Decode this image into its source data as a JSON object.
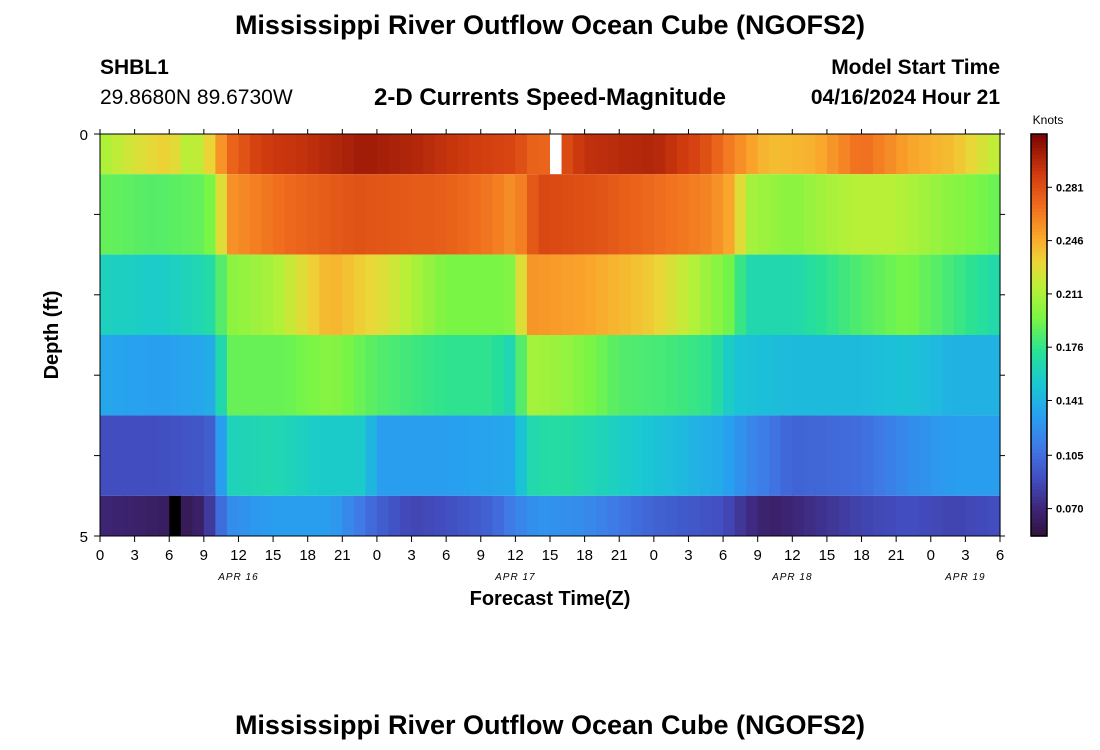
{
  "header": {
    "title": "Mississippi River Outflow Ocean Cube (NGOFS2)",
    "station_id": "SHBL1",
    "coordinates": "29.8680N  89.6730W",
    "model_start_label": "Model Start Time",
    "model_start_value": "04/16/2024 Hour 21"
  },
  "footer": {
    "next_title": "Mississippi River Outflow Ocean Cube (NGOFS2)"
  },
  "chart_data": {
    "type": "heatmap",
    "title": "2-D Currents Speed-Magnitude",
    "xlabel": "Forecast Time(Z)",
    "ylabel": "Depth (ft)",
    "x_hours_range": [
      0,
      78
    ],
    "x_tick_labels": [
      "0",
      "3",
      "6",
      "9",
      "12",
      "15",
      "18",
      "21",
      "0",
      "3",
      "6",
      "9",
      "12",
      "15",
      "18",
      "21",
      "0",
      "3",
      "6",
      "9",
      "12",
      "15",
      "18",
      "21",
      "0",
      "3",
      "6"
    ],
    "date_labels": [
      {
        "label": "APR 16",
        "hour": 12
      },
      {
        "label": "APR 17",
        "hour": 36
      },
      {
        "label": "APR 18",
        "hour": 60
      },
      {
        "label": "APR 19",
        "hour": 75
      }
    ],
    "y_tick_labels": [
      "0",
      "5"
    ],
    "depth_range": [
      0,
      5
    ],
    "colorbar": {
      "label": "Knots",
      "min": 0.052,
      "max": 0.316,
      "tick_labels": [
        "0.281",
        "0.246",
        "0.211",
        "0.176",
        "0.141",
        "0.105",
        "0.070"
      ],
      "tick_values": [
        0.281,
        0.246,
        0.211,
        0.176,
        0.141,
        0.105,
        0.07
      ]
    },
    "layers": [
      {
        "band": [
          0,
          0.5
        ],
        "keypoints": [
          [
            0,
            0.21
          ],
          [
            3,
            0.225
          ],
          [
            6,
            0.235
          ],
          [
            8,
            0.21
          ],
          [
            10,
            0.24
          ],
          [
            11,
            0.27
          ],
          [
            14,
            0.29
          ],
          [
            18,
            0.295
          ],
          [
            23,
            0.305
          ],
          [
            27,
            0.3
          ],
          [
            32,
            0.29
          ],
          [
            36,
            0.285
          ],
          [
            38,
            0.27
          ],
          [
            40,
            0.28
          ],
          [
            42,
            0.295
          ],
          [
            48,
            0.3
          ],
          [
            52,
            0.285
          ],
          [
            55,
            0.26
          ],
          [
            58,
            0.24
          ],
          [
            62,
            0.245
          ],
          [
            66,
            0.27
          ],
          [
            70,
            0.25
          ],
          [
            74,
            0.24
          ],
          [
            78,
            0.215
          ]
        ],
        "missing": [
          [
            39,
            40
          ]
        ]
      },
      {
        "band": [
          0.5,
          1.5
        ],
        "keypoints": [
          [
            0,
            0.19
          ],
          [
            5,
            0.185
          ],
          [
            9,
            0.19
          ],
          [
            10,
            0.2
          ],
          [
            11,
            0.255
          ],
          [
            16,
            0.27
          ],
          [
            22,
            0.28
          ],
          [
            30,
            0.275
          ],
          [
            34,
            0.265
          ],
          [
            36,
            0.255
          ],
          [
            38,
            0.285
          ],
          [
            43,
            0.28
          ],
          [
            48,
            0.27
          ],
          [
            53,
            0.26
          ],
          [
            55,
            0.245
          ],
          [
            56,
            0.21
          ],
          [
            60,
            0.2
          ],
          [
            65,
            0.215
          ],
          [
            69,
            0.215
          ],
          [
            74,
            0.2
          ],
          [
            78,
            0.19
          ]
        ]
      },
      {
        "band": [
          1.5,
          2.5
        ],
        "keypoints": [
          [
            0,
            0.16
          ],
          [
            5,
            0.155
          ],
          [
            9,
            0.165
          ],
          [
            10,
            0.17
          ],
          [
            11,
            0.2
          ],
          [
            15,
            0.21
          ],
          [
            20,
            0.245
          ],
          [
            25,
            0.225
          ],
          [
            30,
            0.195
          ],
          [
            35,
            0.195
          ],
          [
            36,
            0.2
          ],
          [
            37,
            0.255
          ],
          [
            42,
            0.25
          ],
          [
            48,
            0.235
          ],
          [
            52,
            0.21
          ],
          [
            55,
            0.19
          ],
          [
            56,
            0.165
          ],
          [
            60,
            0.165
          ],
          [
            66,
            0.185
          ],
          [
            70,
            0.195
          ],
          [
            74,
            0.18
          ],
          [
            78,
            0.165
          ]
        ]
      },
      {
        "band": [
          2.5,
          3.5
        ],
        "keypoints": [
          [
            0,
            0.135
          ],
          [
            5,
            0.13
          ],
          [
            9,
            0.135
          ],
          [
            10,
            0.14
          ],
          [
            11,
            0.19
          ],
          [
            16,
            0.19
          ],
          [
            20,
            0.2
          ],
          [
            24,
            0.185
          ],
          [
            30,
            0.175
          ],
          [
            34,
            0.175
          ],
          [
            36,
            0.16
          ],
          [
            37,
            0.21
          ],
          [
            40,
            0.205
          ],
          [
            45,
            0.185
          ],
          [
            50,
            0.18
          ],
          [
            53,
            0.175
          ],
          [
            55,
            0.15
          ],
          [
            60,
            0.145
          ],
          [
            66,
            0.145
          ],
          [
            70,
            0.15
          ],
          [
            74,
            0.14
          ],
          [
            78,
            0.14
          ]
        ]
      },
      {
        "band": [
          3.5,
          4.5
        ],
        "keypoints": [
          [
            0,
            0.09
          ],
          [
            5,
            0.09
          ],
          [
            9,
            0.095
          ],
          [
            10,
            0.1
          ],
          [
            11,
            0.16
          ],
          [
            15,
            0.165
          ],
          [
            19,
            0.155
          ],
          [
            23,
            0.155
          ],
          [
            24,
            0.13
          ],
          [
            30,
            0.13
          ],
          [
            36,
            0.135
          ],
          [
            37,
            0.165
          ],
          [
            40,
            0.17
          ],
          [
            44,
            0.16
          ],
          [
            50,
            0.145
          ],
          [
            54,
            0.135
          ],
          [
            56,
            0.12
          ],
          [
            60,
            0.1
          ],
          [
            66,
            0.105
          ],
          [
            70,
            0.12
          ],
          [
            74,
            0.13
          ],
          [
            78,
            0.13
          ]
        ]
      },
      {
        "band": [
          4.5,
          5.0
        ],
        "keypoints": [
          [
            0,
            0.07
          ],
          [
            4,
            0.065
          ],
          [
            8,
            0.06
          ],
          [
            9,
            0.07
          ],
          [
            10,
            0.09
          ],
          [
            11,
            0.12
          ],
          [
            15,
            0.13
          ],
          [
            20,
            0.13
          ],
          [
            24,
            0.1
          ],
          [
            27,
            0.085
          ],
          [
            30,
            0.09
          ],
          [
            34,
            0.1
          ],
          [
            36,
            0.115
          ],
          [
            38,
            0.125
          ],
          [
            42,
            0.12
          ],
          [
            48,
            0.1
          ],
          [
            54,
            0.09
          ],
          [
            56,
            0.075
          ],
          [
            58,
            0.065
          ],
          [
            62,
            0.075
          ],
          [
            66,
            0.085
          ],
          [
            70,
            0.09
          ],
          [
            74,
            0.085
          ],
          [
            78,
            0.09
          ]
        ],
        "missing": [
          [
            6.5,
            7
          ]
        ]
      }
    ]
  }
}
